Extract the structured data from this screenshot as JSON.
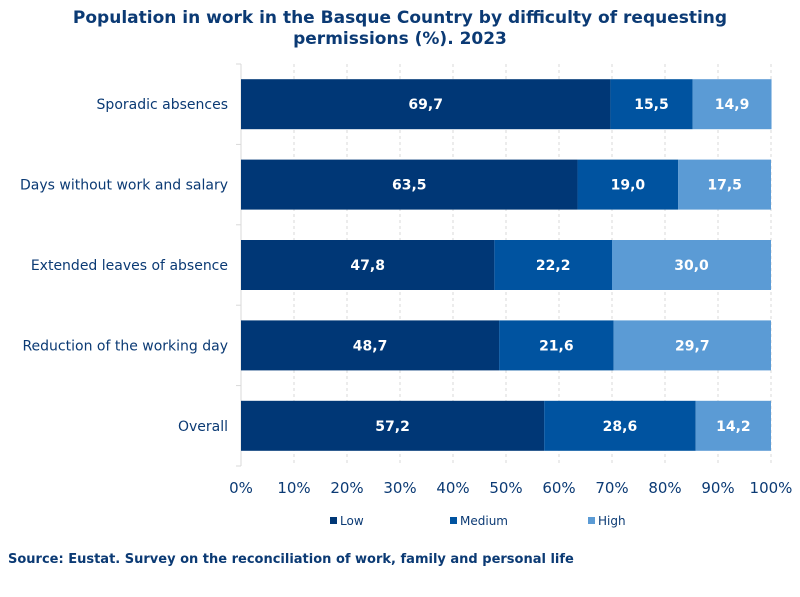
{
  "chart_data": {
    "type": "bar",
    "orientation": "horizontal",
    "stacked": true,
    "title": "Population in work in the Basque Country by difficulty of requesting permissions (%). 2023",
    "title_lines": [
      "Population in work in the Basque Country by difficulty of requesting",
      "permissions (%). 2023"
    ],
    "categories": [
      "Sporadic absences",
      "Days without work and salary",
      "Extended leaves of absence",
      "Reduction of the working day",
      "Overall"
    ],
    "series": [
      {
        "name": "Low",
        "values": [
          69.7,
          63.5,
          47.8,
          48.7,
          57.2
        ],
        "labels": [
          "69,7",
          "63,5",
          "47,8",
          "48,7",
          "57,2"
        ],
        "color": "#003776"
      },
      {
        "name": "Medium",
        "values": [
          15.5,
          19.0,
          22.2,
          21.6,
          28.6
        ],
        "labels": [
          "15,5",
          "19,0",
          "22,2",
          "21,6",
          "28,6"
        ],
        "color": "#0053a0"
      },
      {
        "name": "High",
        "values": [
          14.9,
          17.5,
          30.0,
          29.7,
          14.2
        ],
        "labels": [
          "14,9",
          "17,5",
          "30,0",
          "29,7",
          "14,2"
        ],
        "color": "#5b9bd5"
      }
    ],
    "xlim": [
      0,
      100
    ],
    "xticks": [
      "0%",
      "10%",
      "20%",
      "30%",
      "40%",
      "50%",
      "60%",
      "70%",
      "80%",
      "90%",
      "100%"
    ],
    "xlabel": "",
    "ylabel": "",
    "grid": true,
    "legend_position": "bottom"
  },
  "source": "Source: Eustat. Survey on the reconciliation of work, family and personal life",
  "colors": {
    "title": "#0b3a74",
    "axis_text": "#0b3a74",
    "grid": "#d9d9d9",
    "bar_label": "#ffffff"
  }
}
